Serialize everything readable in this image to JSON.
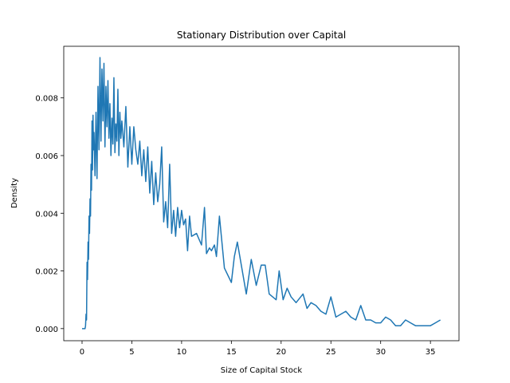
{
  "chart_data": {
    "type": "line",
    "title": "Stationary Distribution over Capital",
    "x_label": "Size of Capital Stock",
    "y_label": "Density",
    "x": [
      0,
      0.3,
      0.35,
      0.4,
      0.45,
      0.5,
      0.55,
      0.6,
      0.65,
      0.7,
      0.75,
      0.8,
      0.85,
      0.9,
      0.95,
      1.0,
      1.05,
      1.1,
      1.15,
      1.2,
      1.3,
      1.4,
      1.5,
      1.6,
      1.7,
      1.8,
      1.9,
      2.0,
      2.1,
      2.2,
      2.3,
      2.4,
      2.5,
      2.6,
      2.7,
      2.8,
      2.9,
      3.0,
      3.1,
      3.2,
      3.3,
      3.4,
      3.5,
      3.6,
      3.7,
      3.8,
      3.9,
      4.0,
      4.2,
      4.4,
      4.6,
      4.8,
      5.0,
      5.2,
      5.4,
      5.6,
      5.8,
      6.0,
      6.2,
      6.4,
      6.6,
      6.8,
      7.0,
      7.2,
      7.4,
      7.6,
      7.8,
      8.0,
      8.2,
      8.4,
      8.6,
      8.8,
      9.0,
      9.2,
      9.4,
      9.6,
      9.8,
      10.0,
      10.2,
      10.4,
      10.6,
      10.8,
      11.0,
      11.5,
      12.0,
      12.3,
      12.5,
      12.8,
      13.0,
      13.3,
      13.5,
      13.8,
      14.3,
      15.0,
      15.3,
      15.6,
      16.5,
      17.0,
      17.5,
      18.0,
      18.4,
      18.8,
      19.5,
      19.8,
      20.2,
      20.6,
      21.0,
      21.5,
      22.2,
      22.6,
      23.0,
      23.5,
      24.0,
      24.5,
      25.0,
      25.5,
      26.5,
      27.0,
      27.5,
      28.0,
      28.5,
      29.0,
      29.5,
      30.0,
      30.5,
      31.0,
      31.5,
      32.0,
      32.5,
      33.0,
      33.5,
      34.0,
      35.0,
      35.5,
      36.0
    ],
    "series": [
      {
        "color": "#1f77b4",
        "values": [
          0,
          0,
          0.0001,
          0.0005,
          0.0003,
          0.0023,
          0.0017,
          0.003,
          0.0024,
          0.0039,
          0.0033,
          0.0045,
          0.0039,
          0.0057,
          0.0048,
          0.0072,
          0.0055,
          0.0074,
          0.0062,
          0.0068,
          0.0053,
          0.0075,
          0.0052,
          0.0084,
          0.0062,
          0.0094,
          0.0065,
          0.009,
          0.0072,
          0.0092,
          0.0063,
          0.0084,
          0.007,
          0.0086,
          0.0066,
          0.0078,
          0.006,
          0.0073,
          0.0064,
          0.0087,
          0.0061,
          0.0071,
          0.0065,
          0.0083,
          0.006,
          0.0075,
          0.0066,
          0.0072,
          0.0063,
          0.0077,
          0.0056,
          0.007,
          0.0057,
          0.007,
          0.0062,
          0.0057,
          0.0065,
          0.0053,
          0.0062,
          0.0051,
          0.0063,
          0.0047,
          0.0058,
          0.0043,
          0.0054,
          0.0044,
          0.005,
          0.0063,
          0.0037,
          0.0044,
          0.0035,
          0.0057,
          0.0033,
          0.0041,
          0.0032,
          0.0042,
          0.0035,
          0.0041,
          0.0036,
          0.0038,
          0.0027,
          0.0039,
          0.0032,
          0.0033,
          0.0029,
          0.0042,
          0.0026,
          0.0028,
          0.0027,
          0.0029,
          0.0025,
          0.0039,
          0.0021,
          0.0016,
          0.0025,
          0.003,
          0.0012,
          0.0024,
          0.0015,
          0.0022,
          0.0022,
          0.0012,
          0.001,
          0.002,
          0.001,
          0.0014,
          0.0011,
          0.0009,
          0.0012,
          0.0007,
          0.0009,
          0.0008,
          0.0006,
          0.0005,
          0.0011,
          0.0004,
          0.0006,
          0.0004,
          0.0003,
          0.0008,
          0.0003,
          0.0003,
          0.0002,
          0.0002,
          0.0004,
          0.0003,
          0.0001,
          0.0001,
          0.0003,
          0.0002,
          0.0001,
          0.0001,
          0.0001,
          0.0002,
          0.0003
        ]
      }
    ],
    "xlim": [
      -1.84,
      37.87
    ],
    "ylim": [
      -0.00042,
      0.00979
    ],
    "xticks": [
      0,
      5,
      10,
      15,
      20,
      25,
      30,
      35
    ],
    "yticks": [
      {
        "value": 0,
        "label": "0.000"
      },
      {
        "value": 0.002,
        "label": "0.002"
      },
      {
        "value": 0.004,
        "label": "0.004"
      },
      {
        "value": 0.006,
        "label": "0.006"
      },
      {
        "value": 0.008,
        "label": "0.008"
      }
    ],
    "grid": false
  }
}
